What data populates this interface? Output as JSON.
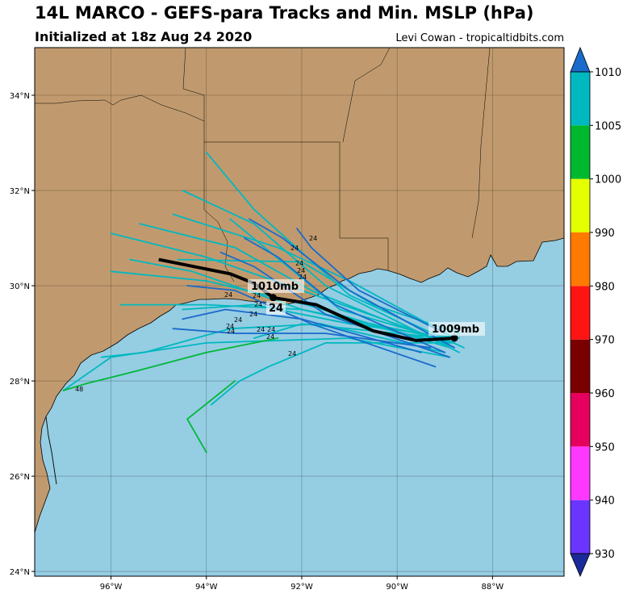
{
  "header": {
    "title": "14L MARCO - GEFS-para Tracks and Min. MSLP (hPa)",
    "subtitle": "Initialized at 18z Aug 24 2020",
    "credit": "Levi Cowan - tropicaltidbits.com"
  },
  "colors": {
    "ocean": "#95cde3",
    "land": "#c09a6e",
    "track_mean": "#000000"
  },
  "map_extent": {
    "lon": [
      -97.6,
      -86.5
    ],
    "lat": [
      23.9,
      35.0
    ]
  },
  "axes": {
    "lat_ticks": [
      {
        "value": 24,
        "label": "24°N"
      },
      {
        "value": 26,
        "label": "26°N"
      },
      {
        "value": 28,
        "label": "28°N"
      },
      {
        "value": 30,
        "label": "30°N"
      },
      {
        "value": 32,
        "label": "32°N"
      },
      {
        "value": 34,
        "label": "34°N"
      }
    ],
    "lon_ticks": [
      {
        "value": -96,
        "label": "96°W"
      },
      {
        "value": -94,
        "label": "94°W"
      },
      {
        "value": -92,
        "label": "92°W"
      },
      {
        "value": -90,
        "label": "90°W"
      },
      {
        "value": -88,
        "label": "88°W"
      }
    ]
  },
  "colorbar": {
    "levels": [
      930,
      940,
      950,
      960,
      970,
      980,
      990,
      1000,
      1005,
      1010
    ],
    "labels": [
      "930",
      "940",
      "950",
      "960",
      "970",
      "980",
      "990",
      "1000",
      "1005",
      "1010"
    ],
    "colors": [
      "#6a35ff",
      "#ff38ff",
      "#e6005e",
      "#7a0000",
      "#ff1414",
      "#ff7a00",
      "#e4ff00",
      "#00b82e",
      "#00b8c0"
    ],
    "under_color": "#1a2a99",
    "over_color": "#1a6acc"
  },
  "annotations": {
    "start_pressure": "1009mb",
    "end_pressure": "1010mb",
    "mean_hour": "24",
    "member_hour": "24",
    "member_hour_48": "48"
  },
  "chart_data": {
    "type": "track-map",
    "mean_track": [
      [
        -88.8,
        28.9
      ],
      [
        -89.6,
        28.85
      ],
      [
        -90.5,
        29.05
      ],
      [
        -91.7,
        29.6
      ],
      [
        -92.6,
        29.75
      ],
      [
        -93.0,
        30.05
      ],
      [
        -93.5,
        30.25
      ],
      [
        -95.0,
        30.55
      ]
    ],
    "member_tracks": [
      {
        "color": "#00b8c0",
        "points": [
          [
            -88.6,
            28.7
          ],
          [
            -91.0,
            29.8
          ],
          [
            -93.0,
            31.6
          ],
          [
            -94.0,
            32.8
          ]
        ]
      },
      {
        "color": "#00b8c0",
        "points": [
          [
            -88.7,
            28.6
          ],
          [
            -91.5,
            30.0
          ],
          [
            -93.0,
            31.3
          ],
          [
            -94.5,
            32.0
          ]
        ]
      },
      {
        "color": "#00b8c0",
        "points": [
          [
            -88.8,
            28.7
          ],
          [
            -91.8,
            29.9
          ],
          [
            -93.4,
            30.8
          ],
          [
            -95.4,
            31.3
          ]
        ]
      },
      {
        "color": "#00b8c0",
        "points": [
          [
            -88.9,
            28.8
          ],
          [
            -92.0,
            29.9
          ],
          [
            -94.0,
            30.6
          ],
          [
            -96.0,
            31.1
          ]
        ]
      },
      {
        "color": "#00b8c0",
        "points": [
          [
            -88.9,
            28.7
          ],
          [
            -91.9,
            29.6
          ],
          [
            -94.0,
            30.1
          ],
          [
            -96.0,
            30.3
          ]
        ]
      },
      {
        "color": "#00b8c0",
        "points": [
          [
            -89.0,
            28.8
          ],
          [
            -92.0,
            29.5
          ],
          [
            -94.0,
            29.6
          ],
          [
            -95.8,
            29.6
          ]
        ]
      },
      {
        "color": "#00b8c0",
        "points": [
          [
            -89.1,
            28.9
          ],
          [
            -92.0,
            29.5
          ],
          [
            -94.3,
            30.3
          ],
          [
            -95.6,
            30.55
          ]
        ]
      },
      {
        "color": "#00b8c0",
        "points": [
          [
            -89.0,
            28.6
          ],
          [
            -91.6,
            29.2
          ],
          [
            -93.5,
            29.1
          ],
          [
            -95.3,
            28.6
          ],
          [
            -96.2,
            28.5
          ]
        ]
      },
      {
        "color": "#00b8c0",
        "points": [
          [
            -88.9,
            28.5
          ],
          [
            -91.0,
            28.9
          ],
          [
            -94.0,
            28.8
          ],
          [
            -96.0,
            28.5
          ],
          [
            -97.0,
            27.8
          ]
        ]
      },
      {
        "color": "#00b8c0",
        "points": [
          [
            -88.8,
            28.8
          ],
          [
            -91.2,
            29.5
          ],
          [
            -93.5,
            31.4
          ]
        ]
      },
      {
        "color": "#00b8c0",
        "points": [
          [
            -88.8,
            28.9
          ],
          [
            -91.0,
            30.1
          ],
          [
            -92.5,
            30.8
          ],
          [
            -94.7,
            31.5
          ]
        ]
      },
      {
        "color": "#00b8c0",
        "points": [
          [
            -88.7,
            29.0
          ],
          [
            -90.5,
            29.6
          ],
          [
            -92.0,
            30.5
          ],
          [
            -94.6,
            30.55
          ]
        ]
      },
      {
        "color": "#00b8c0",
        "points": [
          [
            -88.7,
            28.9
          ],
          [
            -91.0,
            29.2
          ],
          [
            -93.0,
            29.6
          ],
          [
            -94.5,
            29.5
          ]
        ]
      },
      {
        "color": "#00b8c0",
        "points": [
          [
            -89.0,
            28.9
          ],
          [
            -92.0,
            29.2
          ],
          [
            -93.0,
            28.9
          ]
        ]
      },
      {
        "color": "#00b8c0",
        "points": [
          [
            -88.8,
            28.8
          ],
          [
            -91.5,
            28.8
          ],
          [
            -92.7,
            28.3
          ],
          [
            -93.3,
            28.0
          ],
          [
            -93.9,
            27.5
          ]
        ]
      },
      {
        "color": "#00b838",
        "points": [
          [
            -97.0,
            27.8
          ],
          [
            -96.5,
            27.95
          ],
          [
            -95.5,
            28.2
          ],
          [
            -94.0,
            28.6
          ],
          [
            -92.5,
            28.9
          ]
        ]
      },
      {
        "color": "#00b838",
        "points": [
          [
            -94.0,
            26.5
          ],
          [
            -94.4,
            27.2
          ],
          [
            -93.4,
            28.0
          ]
        ]
      },
      {
        "color": "#1a6acc",
        "points": [
          [
            -88.8,
            28.7
          ],
          [
            -91.0,
            29.9
          ],
          [
            -92.4,
            31.0
          ],
          [
            -93.1,
            31.4
          ]
        ]
      },
      {
        "color": "#1a6acc",
        "points": [
          [
            -89.0,
            28.6
          ],
          [
            -91.3,
            29.6
          ],
          [
            -92.5,
            30.6
          ],
          [
            -93.2,
            31.0
          ]
        ]
      },
      {
        "color": "#1a6acc",
        "points": [
          [
            -88.9,
            28.5
          ],
          [
            -91.5,
            29.4
          ],
          [
            -93.0,
            30.4
          ],
          [
            -93.7,
            30.7
          ]
        ]
      },
      {
        "color": "#1a6acc",
        "points": [
          [
            -89.2,
            28.3
          ],
          [
            -91.8,
            29.2
          ],
          [
            -93.4,
            29.9
          ],
          [
            -94.4,
            30.0
          ]
        ]
      },
      {
        "color": "#1a6acc",
        "points": [
          [
            -89.5,
            28.6
          ],
          [
            -92.0,
            29.3
          ],
          [
            -93.6,
            29.5
          ],
          [
            -94.5,
            29.3
          ]
        ]
      },
      {
        "color": "#1a6acc",
        "points": [
          [
            -89.3,
            28.7
          ],
          [
            -91.5,
            29.0
          ],
          [
            -93.4,
            29.0
          ],
          [
            -94.7,
            29.1
          ]
        ]
      },
      {
        "color": "#1a6acc",
        "points": [
          [
            -89.0,
            29.0
          ],
          [
            -90.8,
            29.9
          ],
          [
            -91.8,
            30.8
          ],
          [
            -92.1,
            31.2
          ]
        ]
      }
    ]
  }
}
